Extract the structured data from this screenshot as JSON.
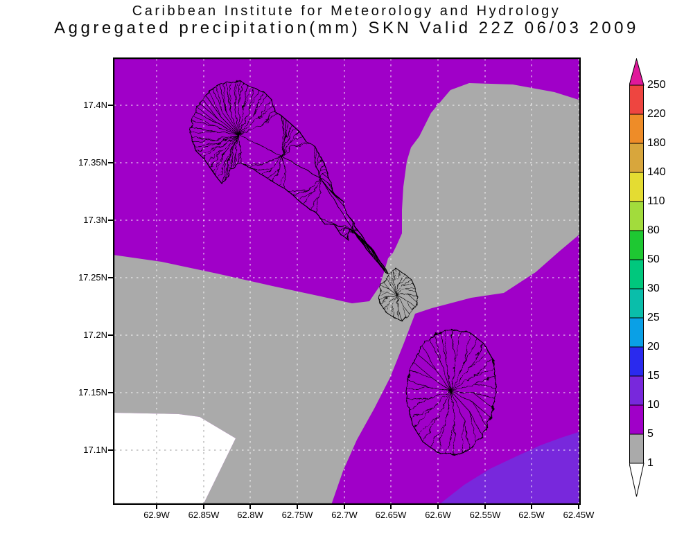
{
  "title": {
    "line1": "Caribbean Institute for Meteorology and Hydrology",
    "line2": "Aggregated precipitation(mm) SKN Valid 22Z 06/03 2009"
  },
  "chart_data": {
    "type": "heatmap",
    "title": "Caribbean Institute for Meteorology and Hydrology",
    "subtitle": "Aggregated precipitation(mm) SKN Valid 22Z 06/03 2009",
    "variable": "Aggregated precipitation (mm)",
    "region_code": "SKN",
    "valid_time": "22Z 06/03 2009",
    "x_axis": {
      "ticks": [
        "62.9W",
        "62.85W",
        "62.8W",
        "62.75W",
        "62.7W",
        "62.65W",
        "62.6W",
        "62.55W",
        "62.5W",
        "62.45W"
      ],
      "grid": true
    },
    "y_axis": {
      "ticks": [
        "17.4N",
        "17.35N",
        "17.3N",
        "17.25N",
        "17.2N",
        "17.15N",
        "17.1N"
      ],
      "grid": true
    },
    "colorbar": {
      "orientation": "vertical",
      "levels_top_to_bottom": [
        "250",
        "220",
        "180",
        "140",
        "110",
        "80",
        "50",
        "30",
        "25",
        "20",
        "15",
        "10",
        "5",
        "1"
      ],
      "segment_colors_top_to_bottom": [
        "#ee4540",
        "#ee8c28",
        "#d8a63c",
        "#e4dc32",
        "#a2dc3c",
        "#1ec832",
        "#00c87d",
        "#0abeaa",
        "#0aa0e6",
        "#2a2aee",
        "#7828dc",
        "#a000c8",
        "#aaaaaa"
      ],
      "above_max_color": "#e0189b",
      "below_min_color": "#ffffff"
    },
    "field_regions": [
      {
        "range_mm": "5-10",
        "color": "#a000c8",
        "where": "most of domain: north, west and around both islands"
      },
      {
        "range_mm": "1-5",
        "color": "#aaaaaa",
        "where": "large northeast lobe joined through a neck at the Southeast Peninsula to a southwest lobe reaching the bottom edge"
      },
      {
        "range_mm": "<1",
        "color": "#ffffff",
        "where": "bottom-left corner"
      },
      {
        "range_mm": "10-15",
        "color": "#7828dc",
        "where": "bottom-right corner"
      }
    ],
    "map_features": [
      "St. Kitts island outline with dendritic drainage network",
      "Nevis island outline with radial drainage network",
      "Southeast Peninsula islet outline (jagged)"
    ]
  },
  "layout_note": ""
}
